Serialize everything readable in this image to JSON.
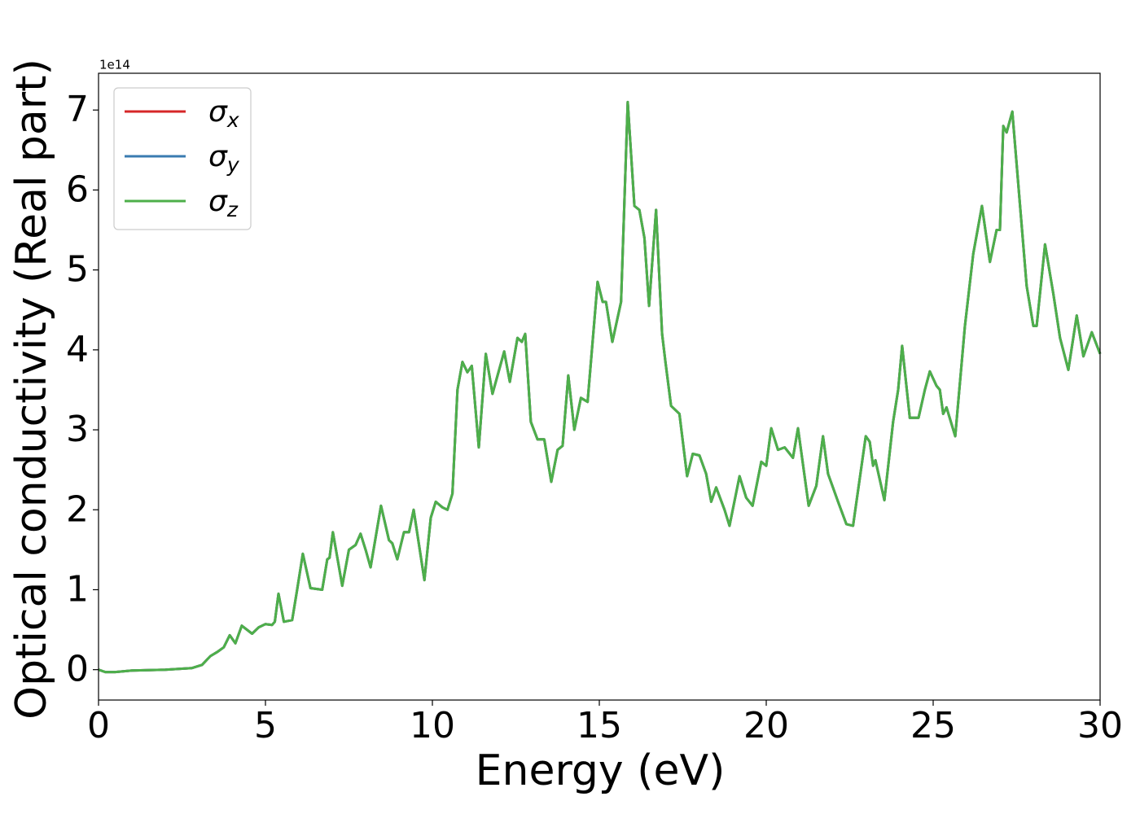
{
  "chart_data": {
    "type": "line",
    "xlabel": "Energy (eV)",
    "ylabel": "Optical conductivity (Real part)",
    "y_offset_label": "1e14",
    "xlim": [
      0,
      30
    ],
    "xticks": [
      0,
      5,
      10,
      15,
      20,
      25,
      30
    ],
    "ylim": [
      -0.38,
      7.46
    ],
    "yticks": [
      0,
      1,
      2,
      3,
      4,
      5,
      6,
      7
    ],
    "legend": "upper left",
    "x": [
      0,
      0.2,
      0.5,
      1,
      2,
      2.8,
      3.1,
      3.35,
      3.55,
      3.75,
      3.93,
      4.1,
      4.29,
      4.6,
      4.8,
      5.0,
      5.2,
      5.28,
      5.39,
      5.55,
      5.8,
      5.95,
      6.12,
      6.35,
      6.7,
      6.85,
      6.92,
      7.02,
      7.3,
      7.5,
      7.7,
      7.85,
      8.0,
      8.15,
      8.46,
      8.7,
      8.8,
      8.95,
      9.15,
      9.3,
      9.44,
      9.76,
      9.95,
      10.1,
      10.3,
      10.45,
      10.6,
      10.75,
      10.9,
      11.05,
      11.18,
      11.39,
      11.6,
      11.8,
      12.15,
      12.32,
      12.55,
      12.68,
      12.78,
      12.95,
      13.15,
      13.35,
      13.56,
      13.75,
      13.9,
      14.07,
      14.25,
      14.45,
      14.65,
      14.95,
      15.1,
      15.2,
      15.39,
      15.65,
      15.85,
      16.05,
      16.2,
      16.35,
      16.49,
      16.7,
      16.88,
      16.98,
      17.15,
      17.4,
      17.63,
      17.8,
      18.0,
      18.2,
      18.35,
      18.5,
      18.75,
      18.9,
      19.2,
      19.4,
      19.59,
      19.85,
      20.0,
      20.15,
      20.35,
      20.55,
      20.8,
      20.95,
      21.27,
      21.5,
      21.7,
      21.85,
      22.15,
      22.4,
      22.6,
      22.98,
      23.1,
      23.2,
      23.27,
      23.54,
      23.8,
      23.95,
      24.07,
      24.3,
      24.56,
      24.75,
      24.9,
      25.1,
      25.2,
      25.3,
      25.4,
      25.66,
      25.95,
      26.2,
      26.46,
      26.7,
      26.9,
      27.0,
      27.1,
      27.2,
      27.37,
      27.8,
      28.0,
      28.1,
      28.35,
      28.6,
      28.8,
      29.05,
      29.3,
      29.5,
      29.75,
      30
    ],
    "series": [
      {
        "name": "σx",
        "color": "#d62728",
        "values": [
          0,
          -0.03,
          -0.03,
          -0.01,
          0,
          0.02,
          0.06,
          0.17,
          0.22,
          0.28,
          0.43,
          0.33,
          0.55,
          0.45,
          0.53,
          0.57,
          0.56,
          0.6,
          0.95,
          0.6,
          0.62,
          1.0,
          1.45,
          1.02,
          1.0,
          1.38,
          1.4,
          1.72,
          1.05,
          1.5,
          1.56,
          1.7,
          1.5,
          1.28,
          2.05,
          1.62,
          1.58,
          1.38,
          1.72,
          1.72,
          2.0,
          1.12,
          1.9,
          2.1,
          2.03,
          2.0,
          2.2,
          3.5,
          3.85,
          3.72,
          3.8,
          2.78,
          3.95,
          3.45,
          3.98,
          3.6,
          4.15,
          4.1,
          4.2,
          3.1,
          2.88,
          2.88,
          2.35,
          2.75,
          2.8,
          3.68,
          3.0,
          3.4,
          3.35,
          4.85,
          4.6,
          4.6,
          4.1,
          4.6,
          7.1,
          5.8,
          5.75,
          5.4,
          4.55,
          5.75,
          4.2,
          3.85,
          3.3,
          3.2,
          2.42,
          2.7,
          2.68,
          2.45,
          2.1,
          2.28,
          2.0,
          1.8,
          2.42,
          2.15,
          2.05,
          2.6,
          2.55,
          3.02,
          2.75,
          2.78,
          2.65,
          3.02,
          2.05,
          2.3,
          2.92,
          2.45,
          2.1,
          1.82,
          1.8,
          2.92,
          2.85,
          2.55,
          2.62,
          2.12,
          3.1,
          3.5,
          4.05,
          3.15,
          3.15,
          3.5,
          3.73,
          3.55,
          3.5,
          3.2,
          3.28,
          2.92,
          4.3,
          5.2,
          5.8,
          5.1,
          5.5,
          5.5,
          6.8,
          6.72,
          6.98,
          4.8,
          4.3,
          4.3,
          5.32,
          4.7,
          4.15,
          3.75,
          4.43,
          3.92,
          4.22,
          3.95
        ]
      },
      {
        "name": "σy",
        "color": "#3a7bb0",
        "values": [
          0,
          -0.03,
          -0.03,
          -0.01,
          0,
          0.02,
          0.06,
          0.17,
          0.22,
          0.28,
          0.43,
          0.33,
          0.55,
          0.45,
          0.53,
          0.57,
          0.56,
          0.6,
          0.95,
          0.6,
          0.62,
          1.0,
          1.45,
          1.02,
          1.0,
          1.38,
          1.4,
          1.72,
          1.05,
          1.5,
          1.56,
          1.7,
          1.5,
          1.28,
          2.05,
          1.62,
          1.58,
          1.38,
          1.72,
          1.72,
          2.0,
          1.12,
          1.9,
          2.1,
          2.03,
          2.0,
          2.2,
          3.5,
          3.85,
          3.72,
          3.8,
          2.78,
          3.95,
          3.45,
          3.98,
          3.6,
          4.15,
          4.1,
          4.2,
          3.1,
          2.88,
          2.88,
          2.35,
          2.75,
          2.8,
          3.68,
          3.0,
          3.4,
          3.35,
          4.85,
          4.6,
          4.6,
          4.1,
          4.6,
          7.1,
          5.8,
          5.75,
          5.4,
          4.55,
          5.75,
          4.2,
          3.85,
          3.3,
          3.2,
          2.42,
          2.7,
          2.68,
          2.45,
          2.1,
          2.28,
          2.0,
          1.8,
          2.42,
          2.15,
          2.05,
          2.6,
          2.55,
          3.02,
          2.75,
          2.78,
          2.65,
          3.02,
          2.05,
          2.3,
          2.92,
          2.45,
          2.1,
          1.82,
          1.8,
          2.92,
          2.85,
          2.55,
          2.62,
          2.12,
          3.1,
          3.5,
          4.05,
          3.15,
          3.15,
          3.5,
          3.73,
          3.55,
          3.5,
          3.2,
          3.28,
          2.92,
          4.3,
          5.2,
          5.8,
          5.1,
          5.5,
          5.5,
          6.8,
          6.72,
          6.98,
          4.8,
          4.3,
          4.3,
          5.32,
          4.7,
          4.15,
          3.75,
          4.43,
          3.92,
          4.22,
          3.95
        ]
      },
      {
        "name": "σz",
        "color": "#4daf4a",
        "values": [
          0,
          -0.03,
          -0.03,
          -0.01,
          0,
          0.02,
          0.06,
          0.17,
          0.22,
          0.28,
          0.43,
          0.33,
          0.55,
          0.45,
          0.53,
          0.57,
          0.56,
          0.6,
          0.95,
          0.6,
          0.62,
          1.0,
          1.45,
          1.02,
          1.0,
          1.38,
          1.4,
          1.72,
          1.05,
          1.5,
          1.56,
          1.7,
          1.5,
          1.28,
          2.05,
          1.62,
          1.58,
          1.38,
          1.72,
          1.72,
          2.0,
          1.12,
          1.9,
          2.1,
          2.03,
          2.0,
          2.2,
          3.5,
          3.85,
          3.72,
          3.8,
          2.78,
          3.95,
          3.45,
          3.98,
          3.6,
          4.15,
          4.1,
          4.2,
          3.1,
          2.88,
          2.88,
          2.35,
          2.75,
          2.8,
          3.68,
          3.0,
          3.4,
          3.35,
          4.85,
          4.6,
          4.6,
          4.1,
          4.6,
          7.1,
          5.8,
          5.75,
          5.4,
          4.55,
          5.75,
          4.2,
          3.85,
          3.3,
          3.2,
          2.42,
          2.7,
          2.68,
          2.45,
          2.1,
          2.28,
          2.0,
          1.8,
          2.42,
          2.15,
          2.05,
          2.6,
          2.55,
          3.02,
          2.75,
          2.78,
          2.65,
          3.02,
          2.05,
          2.3,
          2.92,
          2.45,
          2.1,
          1.82,
          1.8,
          2.92,
          2.85,
          2.55,
          2.62,
          2.12,
          3.1,
          3.5,
          4.05,
          3.15,
          3.15,
          3.5,
          3.73,
          3.55,
          3.5,
          3.2,
          3.28,
          2.92,
          4.3,
          5.2,
          5.8,
          5.1,
          5.5,
          5.5,
          6.8,
          6.72,
          6.98,
          4.8,
          4.3,
          4.3,
          5.32,
          4.7,
          4.15,
          3.75,
          4.43,
          3.92,
          4.22,
          3.95
        ]
      }
    ]
  }
}
